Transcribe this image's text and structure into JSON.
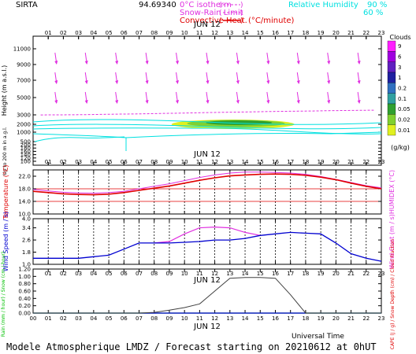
{
  "header": {
    "station": "SIRTA",
    "coords": "94.69340",
    "legend_isotherm": "0°C isotherm",
    "legend_snow": "Snow-Rain Limit",
    "legend_convective": "Convective Heat.",
    "legend_convective_unit": "(°C/minute)",
    "legend_rh": "Relative Humidity",
    "rh_90": "90 %",
    "rh_60": "60 %"
  },
  "footer": {
    "universal_time": "Universal Time",
    "bottom_line": "Modele Atmospherique LMDZ / Forecast starting on 20210612 at 0hUT"
  },
  "colors": {
    "isotherm": "#e030e0",
    "rh": "#00e0e0",
    "convective": "#e00000",
    "temp": "#e00000",
    "humidex": "#e030e0",
    "wind_speed": "#0000d0",
    "wind_gust": "#e030e0",
    "rain": "#00c000",
    "snow": "#0000d0",
    "cloud_fraction": "#404040",
    "cape": "#e00000"
  },
  "chart_data": [
    {
      "type": "heatmap",
      "name": "Clouds panel",
      "date_label": "JUN 12",
      "x_ticks": [
        "01",
        "02",
        "03",
        "04",
        "05",
        "06",
        "07",
        "08",
        "09",
        "10",
        "11",
        "12",
        "13",
        "14",
        "15",
        "16",
        "17",
        "18",
        "19",
        "20",
        "21",
        "22",
        "23"
      ],
      "ylabel": "Height (m a.s.l.)",
      "ylabel_lower": "Up to 200 m in a.g.l.",
      "y_ticks": [
        "100",
        "120",
        "140",
        "160",
        "180",
        "200",
        "500",
        "1000",
        "2000",
        "3000",
        "5000",
        "7000",
        "9000",
        "11000"
      ],
      "colorbar_title": "Clouds",
      "colorbar_unit": "(g/kg)",
      "colorbar_ticks": [
        "9",
        "6",
        "3",
        "1",
        "0.2",
        "0.1",
        "0.05",
        "0.02",
        "0.01"
      ],
      "colorbar_colors": [
        "#ff20ff",
        "#a000e0",
        "#6020c0",
        "#2020a0",
        "#3070c0",
        "#30a0a0",
        "#30a030",
        "#80d030",
        "#e0f020"
      ],
      "isotherm_m": [
        2990,
        3000,
        3010,
        3030,
        3050,
        3080,
        3100,
        3130,
        3160,
        3190,
        3230,
        3260,
        3290,
        3320,
        3350,
        3380,
        3410,
        3430,
        3450,
        3480,
        3500,
        3520,
        3540
      ]
    },
    {
      "type": "line",
      "name": "Temperature panel",
      "date_label": "JUN 12",
      "x": [
        0,
        1,
        2,
        3,
        4,
        5,
        6,
        7,
        8,
        9,
        10,
        11,
        12,
        13,
        14,
        15,
        16,
        17,
        18,
        19,
        20,
        21,
        22,
        23
      ],
      "ylabel": "Temperature (°C)",
      "ylabel_right": "HUMIDEX (°C)",
      "y_ticks": [
        "10.0",
        "14.0",
        "18.0",
        "22.0"
      ],
      "ylim": [
        10,
        24
      ],
      "series": [
        {
          "name": "Temperature",
          "values": [
            17.2,
            16.8,
            16.4,
            16.2,
            16.1,
            16.3,
            16.8,
            17.5,
            18.2,
            18.9,
            19.8,
            20.7,
            21.5,
            22.1,
            22.4,
            22.6,
            22.7,
            22.6,
            22.3,
            21.7,
            20.9,
            19.8,
            18.8,
            18.0
          ]
        },
        {
          "name": "Humidex",
          "values": [
            17.8,
            17.3,
            16.9,
            16.7,
            16.6,
            16.8,
            17.2,
            18.0,
            18.8,
            19.6,
            20.6,
            21.6,
            22.4,
            23.0,
            23.3,
            23.3,
            23.2,
            23.0,
            22.6,
            21.9,
            21.0,
            20.0,
            19.0,
            18.3
          ]
        }
      ]
    },
    {
      "type": "line",
      "name": "Wind panel",
      "x": [
        0,
        1,
        2,
        3,
        4,
        5,
        6,
        7,
        8,
        9,
        10,
        11,
        12,
        13,
        14,
        15,
        16,
        17,
        18,
        19,
        20,
        21,
        22,
        23
      ],
      "ylabel": "Wind Speed (m / s)",
      "ylabel_right": "Wind Gust (m / s)",
      "y_ticks": [
        "1.0",
        "1.8",
        "2.6",
        "3.4",
        "4.0"
      ],
      "ylim": [
        1.0,
        4.0
      ],
      "series": [
        {
          "name": "Wind Speed",
          "values": [
            1.4,
            1.4,
            1.4,
            1.4,
            1.5,
            1.6,
            2.0,
            2.4,
            2.4,
            2.4,
            2.45,
            2.5,
            2.6,
            2.6,
            2.7,
            2.9,
            3.0,
            3.1,
            3.05,
            3.0,
            2.4,
            1.7,
            1.4,
            1.2
          ]
        },
        {
          "name": "Wind Gust",
          "values": [
            null,
            null,
            null,
            null,
            null,
            null,
            null,
            null,
            2.4,
            2.5,
            3.0,
            3.4,
            3.45,
            3.4,
            3.1,
            2.9,
            null,
            null,
            null,
            null,
            null,
            null,
            null,
            null
          ]
        }
      ]
    },
    {
      "type": "line",
      "name": "Precipitation panel",
      "date_label": "JUN 12",
      "x_ticks": [
        "01",
        "02",
        "03",
        "04",
        "05",
        "06",
        "07",
        "08",
        "09",
        "10",
        "11",
        "12",
        "13",
        "14",
        "15",
        "16",
        "17",
        "18",
        "19",
        "20",
        "21",
        "22",
        "23"
      ],
      "x_ticks_bottom": [
        "00",
        "01",
        "02",
        "03",
        "04",
        "05",
        "06",
        "07",
        "08",
        "09",
        "10",
        "11",
        "12",
        "13",
        "14",
        "15",
        "16",
        "17",
        "18",
        "19",
        "20",
        "21",
        "22",
        "23"
      ],
      "x": [
        0,
        1,
        2,
        3,
        4,
        5,
        6,
        7,
        8,
        9,
        10,
        11,
        12,
        13,
        14,
        15,
        16,
        17,
        18,
        19,
        20,
        21,
        22,
        23
      ],
      "ylabel": "Rain (mm / hour) / Snow (cm / hour)",
      "ylabel_right": "CAPE (J / g) / Snow Depth (cm) / Cloud Fraction",
      "y_ticks": [
        "0.00",
        "0.20",
        "0.40",
        "0.60",
        "0.80",
        "1.00",
        "1.20"
      ],
      "ylim": [
        0,
        1.2
      ],
      "series": [
        {
          "name": "Cloud Fraction",
          "values": [
            0,
            0,
            0,
            0,
            0,
            0,
            0,
            0,
            0.02,
            0.08,
            0.15,
            0.25,
            0.6,
            0.95,
            0.97,
            0.97,
            0.95,
            0.5,
            0,
            0,
            0,
            0,
            0,
            0
          ]
        },
        {
          "name": "Rain",
          "values": [
            0,
            0,
            0,
            0,
            0,
            0,
            0,
            0,
            0,
            0,
            0,
            0,
            0,
            0,
            0,
            0,
            0,
            0,
            0,
            0,
            0,
            0,
            0,
            0
          ]
        },
        {
          "name": "Snow",
          "values": [
            0,
            0,
            0,
            0,
            0,
            0,
            0,
            0,
            0,
            0,
            0,
            0,
            0,
            0,
            0,
            0,
            0,
            0,
            0,
            0,
            0,
            0,
            0,
            0
          ]
        }
      ]
    }
  ]
}
